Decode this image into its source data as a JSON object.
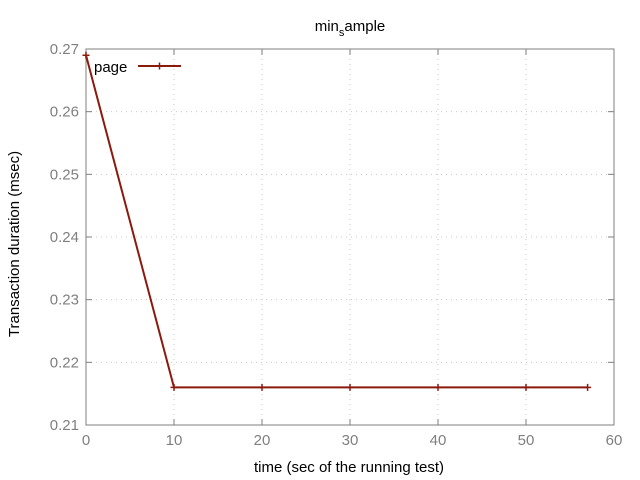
{
  "chart_data": {
    "type": "line",
    "title": "min_sample",
    "title_parts": {
      "base": "min",
      "subscript": "s",
      "rest": "ample"
    },
    "xlabel": "time (sec of the running test)",
    "ylabel": "Transaction duration (msec)",
    "xlim": [
      0,
      60
    ],
    "ylim": [
      0.21,
      0.27
    ],
    "xticks": [
      0,
      10,
      20,
      30,
      40,
      50,
      60
    ],
    "yticks": [
      0.21,
      0.22,
      0.23,
      0.24,
      0.25,
      0.26,
      0.27
    ],
    "xtick_labels": [
      "0",
      "10",
      "20",
      "30",
      "40",
      "50",
      "60"
    ],
    "ytick_labels": [
      "0.21",
      "0.22",
      "0.23",
      "0.24",
      "0.25",
      "0.26",
      "0.27"
    ],
    "grid": true,
    "legend_position": "top-left",
    "series": [
      {
        "name": "page",
        "color": "#8b1a0e",
        "x": [
          0,
          10,
          20,
          30,
          40,
          50,
          57
        ],
        "y": [
          0.269,
          0.216,
          0.216,
          0.216,
          0.216,
          0.216,
          0.216
        ]
      }
    ]
  }
}
